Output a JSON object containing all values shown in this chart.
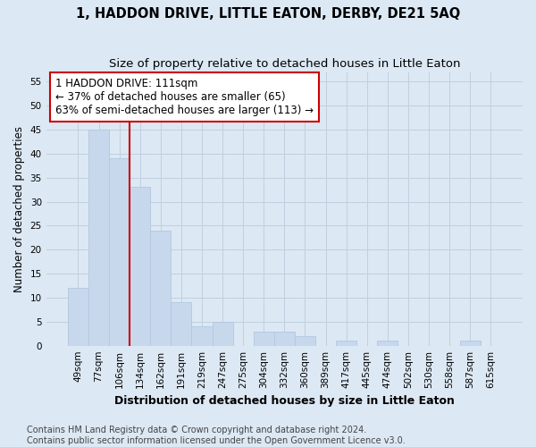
{
  "title": "1, HADDON DRIVE, LITTLE EATON, DERBY, DE21 5AQ",
  "subtitle": "Size of property relative to detached houses in Little Eaton",
  "xlabel": "Distribution of detached houses by size in Little Eaton",
  "ylabel": "Number of detached properties",
  "categories": [
    "49sqm",
    "77sqm",
    "106sqm",
    "134sqm",
    "162sqm",
    "191sqm",
    "219sqm",
    "247sqm",
    "275sqm",
    "304sqm",
    "332sqm",
    "360sqm",
    "389sqm",
    "417sqm",
    "445sqm",
    "474sqm",
    "502sqm",
    "530sqm",
    "558sqm",
    "587sqm",
    "615sqm"
  ],
  "values": [
    12,
    45,
    39,
    33,
    24,
    9,
    4,
    5,
    0,
    3,
    3,
    2,
    0,
    1,
    0,
    1,
    0,
    0,
    0,
    1,
    0
  ],
  "bar_color": "#c8d8ec",
  "bar_edge_color": "#b0c8e0",
  "ylim": [
    0,
    57
  ],
  "yticks": [
    0,
    5,
    10,
    15,
    20,
    25,
    30,
    35,
    40,
    45,
    50,
    55
  ],
  "grid_color": "#c0d0e0",
  "bg_color": "#dce8f4",
  "red_line_index": 2,
  "annotation_box_text": "1 HADDON DRIVE: 111sqm\n← 37% of detached houses are smaller (65)\n63% of semi-detached houses are larger (113) →",
  "annotation_box_facecolor": "#ffffff",
  "annotation_box_edgecolor": "#cc0000",
  "red_line_color": "#cc0000",
  "footer_line1": "Contains HM Land Registry data © Crown copyright and database right 2024.",
  "footer_line2": "Contains public sector information licensed under the Open Government Licence v3.0.",
  "title_fontsize": 10.5,
  "subtitle_fontsize": 9.5,
  "xlabel_fontsize": 9,
  "ylabel_fontsize": 8.5,
  "tick_fontsize": 7.5,
  "annotation_fontsize": 8.5,
  "footer_fontsize": 7
}
